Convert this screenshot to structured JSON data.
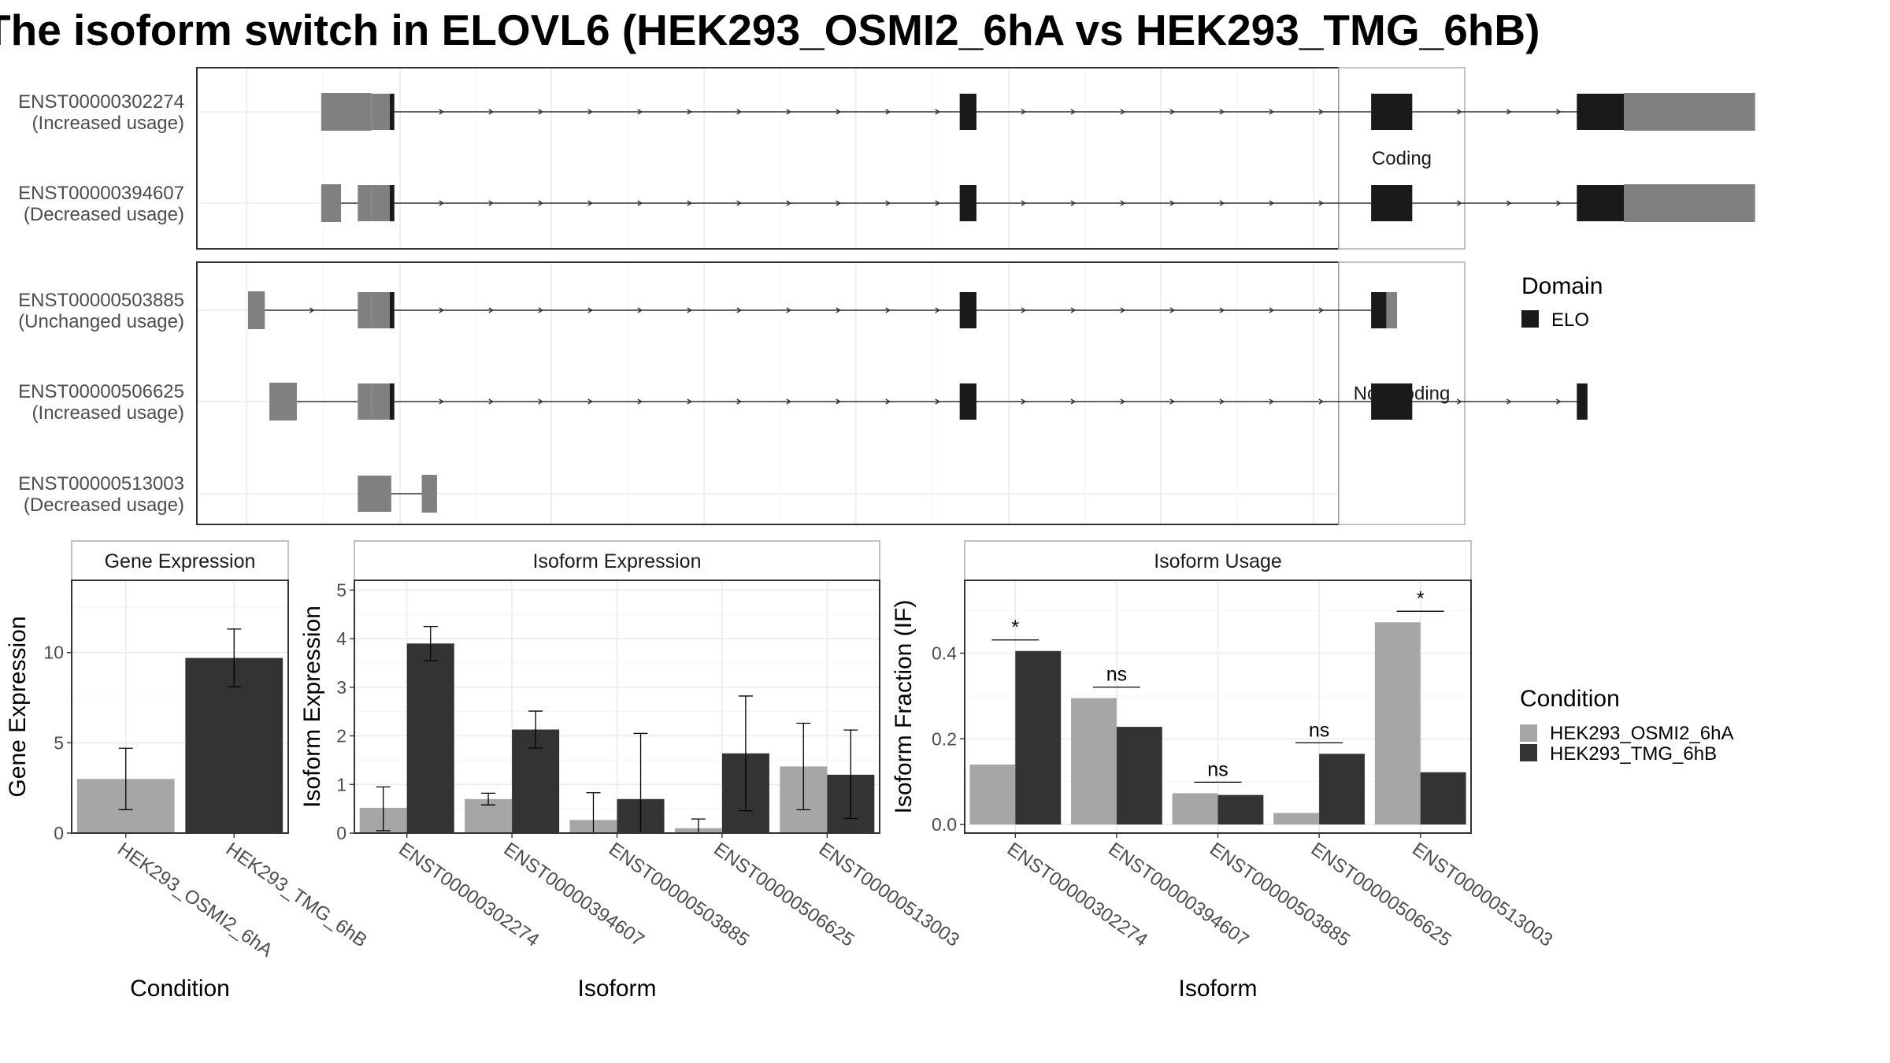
{
  "title": "The isoform switch in ELOVL6 (HEK293_OSMI2_6hA vs HEK293_TMG_6hB)",
  "colors": {
    "domain": "#1a1a1a",
    "utr": "#808080",
    "condition_a": "#a6a6a6",
    "condition_b": "#333333",
    "grid": "#ebebeb"
  },
  "legend_domain": {
    "title": "Domain",
    "items": [
      "ELO"
    ]
  },
  "legend_condition": {
    "title": "Condition",
    "items": [
      "HEK293_OSMI2_6hA",
      "HEK293_TMG_6hB"
    ]
  },
  "transcripts": {
    "groups": [
      {
        "label": "Coding",
        "rows": [
          {
            "id": "ENST00000302274",
            "usage": "(Increased usage)",
            "exons": [
              {
                "s": 255,
                "e": 288,
                "t": "utr"
              },
              {
                "s": 288,
                "e": 300,
                "t": "utr"
              },
              {
                "s": 300,
                "e": 303,
                "t": "domain"
              },
              {
                "s": 674,
                "e": 685,
                "t": "domain"
              },
              {
                "s": 944,
                "e": 971,
                "t": "domain"
              },
              {
                "s": 1079,
                "e": 1110,
                "t": "domain"
              },
              {
                "s": 1110,
                "e": 1196,
                "t": "utr"
              }
            ]
          },
          {
            "id": "ENST00000394607",
            "usage": "(Decreased usage)",
            "exons": [
              {
                "s": 255,
                "e": 268,
                "t": "utr"
              },
              {
                "s": 279,
                "e": 288,
                "t": "utr"
              },
              {
                "s": 288,
                "e": 300,
                "t": "utr"
              },
              {
                "s": 300,
                "e": 303,
                "t": "domain"
              },
              {
                "s": 674,
                "e": 685,
                "t": "domain"
              },
              {
                "s": 944,
                "e": 971,
                "t": "domain"
              },
              {
                "s": 1079,
                "e": 1110,
                "t": "domain"
              },
              {
                "s": 1110,
                "e": 1196,
                "t": "utr"
              }
            ]
          }
        ]
      },
      {
        "label": "Non-coding",
        "rows": [
          {
            "id": "ENST00000503885",
            "usage": "(Unchanged usage)",
            "exons": [
              {
                "s": 207,
                "e": 218,
                "t": "utr"
              },
              {
                "s": 279,
                "e": 288,
                "t": "utr"
              },
              {
                "s": 288,
                "e": 300,
                "t": "utr"
              },
              {
                "s": 300,
                "e": 303,
                "t": "domain"
              },
              {
                "s": 674,
                "e": 685,
                "t": "domain"
              },
              {
                "s": 944,
                "e": 954,
                "t": "domain"
              },
              {
                "s": 954,
                "e": 961,
                "t": "utr"
              }
            ]
          },
          {
            "id": "ENST00000506625",
            "usage": "(Increased usage)",
            "exons": [
              {
                "s": 221,
                "e": 239,
                "t": "utr"
              },
              {
                "s": 279,
                "e": 288,
                "t": "utr"
              },
              {
                "s": 288,
                "e": 300,
                "t": "utr"
              },
              {
                "s": 300,
                "e": 303,
                "t": "domain"
              },
              {
                "s": 674,
                "e": 685,
                "t": "domain"
              },
              {
                "s": 944,
                "e": 971,
                "t": "domain"
              },
              {
                "s": 1079,
                "e": 1086,
                "t": "domain"
              }
            ]
          },
          {
            "id": "ENST00000513003",
            "usage": "(Decreased usage)",
            "exons": [
              {
                "s": 279,
                "e": 301,
                "t": "utr"
              },
              {
                "s": 321,
                "e": 331,
                "t": "utr"
              }
            ]
          }
        ]
      }
    ]
  },
  "chart_data": [
    {
      "type": "bar",
      "title": "Gene Expression",
      "xlabel": "Condition",
      "ylabel": "Gene Expression",
      "ylim": [
        0,
        14
      ],
      "yticks": [
        0,
        5,
        10
      ],
      "categories": [
        "HEK293_OSMI2_6hA",
        "HEK293_TMG_6hB"
      ],
      "values": [
        3.0,
        9.7
      ],
      "err_low": [
        1.3,
        8.1
      ],
      "err_high": [
        4.7,
        11.3
      ]
    },
    {
      "type": "bar",
      "title": "Isoform Expression",
      "xlabel": "Isoform",
      "ylabel": "Isoform Expression",
      "ylim": [
        0,
        5.2
      ],
      "yticks": [
        0,
        1,
        2,
        3,
        4,
        5
      ],
      "categories": [
        "ENST00000302274",
        "ENST00000394607",
        "ENST00000503885",
        "ENST00000506625",
        "ENST00000513003"
      ],
      "series": [
        {
          "name": "HEK293_OSMI2_6hA",
          "values": [
            0.52,
            0.7,
            0.27,
            0.1,
            1.37
          ],
          "err_low": [
            0.05,
            0.58,
            0.0,
            0.0,
            0.48
          ],
          "err_high": [
            0.95,
            0.82,
            0.83,
            0.29,
            2.26
          ]
        },
        {
          "name": "HEK293_TMG_6hB",
          "values": [
            3.9,
            2.13,
            0.7,
            1.64,
            1.2
          ],
          "err_low": [
            3.55,
            1.75,
            0.0,
            0.46,
            0.3
          ],
          "err_high": [
            4.25,
            2.51,
            2.05,
            2.82,
            2.12
          ]
        }
      ]
    },
    {
      "type": "bar",
      "title": "Isoform Usage",
      "xlabel": "Isoform",
      "ylabel": "Isoform Fraction (IF)",
      "ylim": [
        -0.02,
        0.57
      ],
      "yticks": [
        0.0,
        0.2,
        0.4
      ],
      "yticklabels": [
        "0.0",
        "0.2",
        "0.4"
      ],
      "categories": [
        "ENST00000302274",
        "ENST00000394607",
        "ENST00000503885",
        "ENST00000506625",
        "ENST00000513003"
      ],
      "series": [
        {
          "name": "HEK293_OSMI2_6hA",
          "values": [
            0.14,
            0.295,
            0.073,
            0.027,
            0.472
          ]
        },
        {
          "name": "HEK293_TMG_6hB",
          "values": [
            0.405,
            0.228,
            0.069,
            0.165,
            0.122
          ]
        }
      ],
      "significance": [
        "*",
        "ns",
        "ns",
        "ns",
        "*"
      ]
    }
  ]
}
